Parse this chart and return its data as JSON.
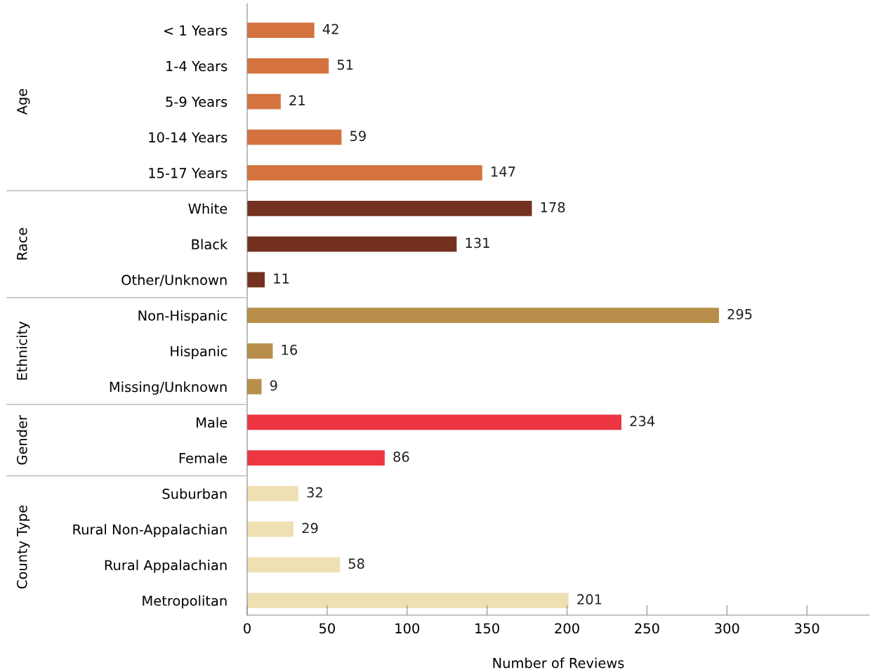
{
  "chart_data": {
    "type": "bar",
    "orientation": "horizontal",
    "xlabel": "Number of Reviews",
    "categories": [
      "< 1 Years",
      "1-4 Years",
      "5-9 Years",
      "10-14 Years",
      "15-17 Years",
      "White",
      "Black",
      "Other/Unknown",
      "Non-Hispanic",
      "Hispanic",
      "Missing/Unknown",
      "Male",
      "Female",
      "Suburban",
      "Rural Non-Appalachian",
      "Rural Appalachian",
      "Metropolitan"
    ],
    "series": [
      {
        "color": "#d4733f",
        "values": [
          42,
          51,
          21,
          59,
          147,
          null,
          null,
          null,
          null,
          null,
          null,
          null,
          null,
          null,
          null,
          null,
          null
        ]
      },
      {
        "color": "#74311f",
        "values": [
          null,
          null,
          null,
          null,
          null,
          178,
          131,
          11,
          null,
          null,
          null,
          null,
          null,
          null,
          null,
          null,
          null
        ]
      },
      {
        "color": "#b88f4a",
        "values": [
          null,
          null,
          null,
          null,
          null,
          null,
          null,
          null,
          295,
          16,
          9,
          null,
          null,
          null,
          null,
          null,
          null
        ]
      },
      {
        "color": "#ee3542",
        "values": [
          null,
          null,
          null,
          null,
          null,
          null,
          null,
          null,
          null,
          null,
          null,
          234,
          86,
          null,
          null,
          null,
          null
        ]
      },
      {
        "color": "#efe0b4",
        "values": [
          null,
          null,
          null,
          null,
          null,
          null,
          null,
          null,
          null,
          null,
          null,
          null,
          null,
          32,
          29,
          58,
          201
        ]
      }
    ],
    "annotations": [
      "Age",
      "Race",
      "Ethnicity",
      "Gender",
      "County Type"
    ],
    "xlim": [
      0,
      389
    ],
    "xticks": [
      0,
      50,
      100,
      150,
      200,
      250,
      300,
      350
    ],
    "data_labels": true,
    "grid": false,
    "legend": false
  }
}
